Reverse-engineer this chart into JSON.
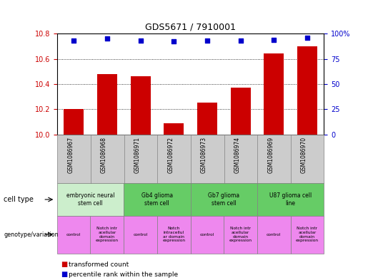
{
  "title": "GDS5671 / 7910001",
  "samples": [
    "GSM1086967",
    "GSM1086968",
    "GSM1086971",
    "GSM1086972",
    "GSM1086973",
    "GSM1086974",
    "GSM1086969",
    "GSM1086970"
  ],
  "transformed_counts": [
    10.2,
    10.48,
    10.46,
    10.09,
    10.25,
    10.37,
    10.64,
    10.7
  ],
  "percentile_ranks": [
    93,
    95,
    93,
    92,
    93,
    93,
    94,
    96
  ],
  "ylim_left": [
    10.0,
    10.8
  ],
  "ylim_right": [
    0,
    100
  ],
  "yticks_left": [
    10.0,
    10.2,
    10.4,
    10.6,
    10.8
  ],
  "yticks_right": [
    0,
    25,
    50,
    75,
    100
  ],
  "ytick_labels_right": [
    "0",
    "25",
    "50",
    "75",
    "100%"
  ],
  "bar_color": "#cc0000",
  "dot_color": "#0000cc",
  "cell_types": [
    {
      "label": "embryonic neural\nstem cell",
      "start": 0,
      "end": 2,
      "color": "#cceecc"
    },
    {
      "label": "Gb4 glioma\nstem cell",
      "start": 2,
      "end": 4,
      "color": "#66cc66"
    },
    {
      "label": "Gb7 glioma\nstem cell",
      "start": 4,
      "end": 6,
      "color": "#66cc66"
    },
    {
      "label": "U87 glioma cell\nline",
      "start": 6,
      "end": 8,
      "color": "#66cc66"
    }
  ],
  "genotypes": [
    {
      "label": "control",
      "start": 0,
      "end": 1,
      "color": "#ee88ee"
    },
    {
      "label": "Notch intr\nacellular\ndomain\nexpression",
      "start": 1,
      "end": 2,
      "color": "#ee88ee"
    },
    {
      "label": "control",
      "start": 2,
      "end": 3,
      "color": "#ee88ee"
    },
    {
      "label": "Notch\nintracellul\nar domain\nexpression",
      "start": 3,
      "end": 4,
      "color": "#ee88ee"
    },
    {
      "label": "control",
      "start": 4,
      "end": 5,
      "color": "#ee88ee"
    },
    {
      "label": "Notch intr\nacellular\ndomain\nexpression",
      "start": 5,
      "end": 6,
      "color": "#ee88ee"
    },
    {
      "label": "control",
      "start": 6,
      "end": 7,
      "color": "#ee88ee"
    },
    {
      "label": "Notch intr\nacellular\ndomain\nexpression",
      "start": 7,
      "end": 8,
      "color": "#ee88ee"
    }
  ],
  "legend_red": "transformed count",
  "legend_blue": "percentile rank within the sample",
  "background_color": "#ffffff",
  "tick_color_left": "#cc0000",
  "tick_color_right": "#0000cc",
  "gray_color": "#cccccc"
}
